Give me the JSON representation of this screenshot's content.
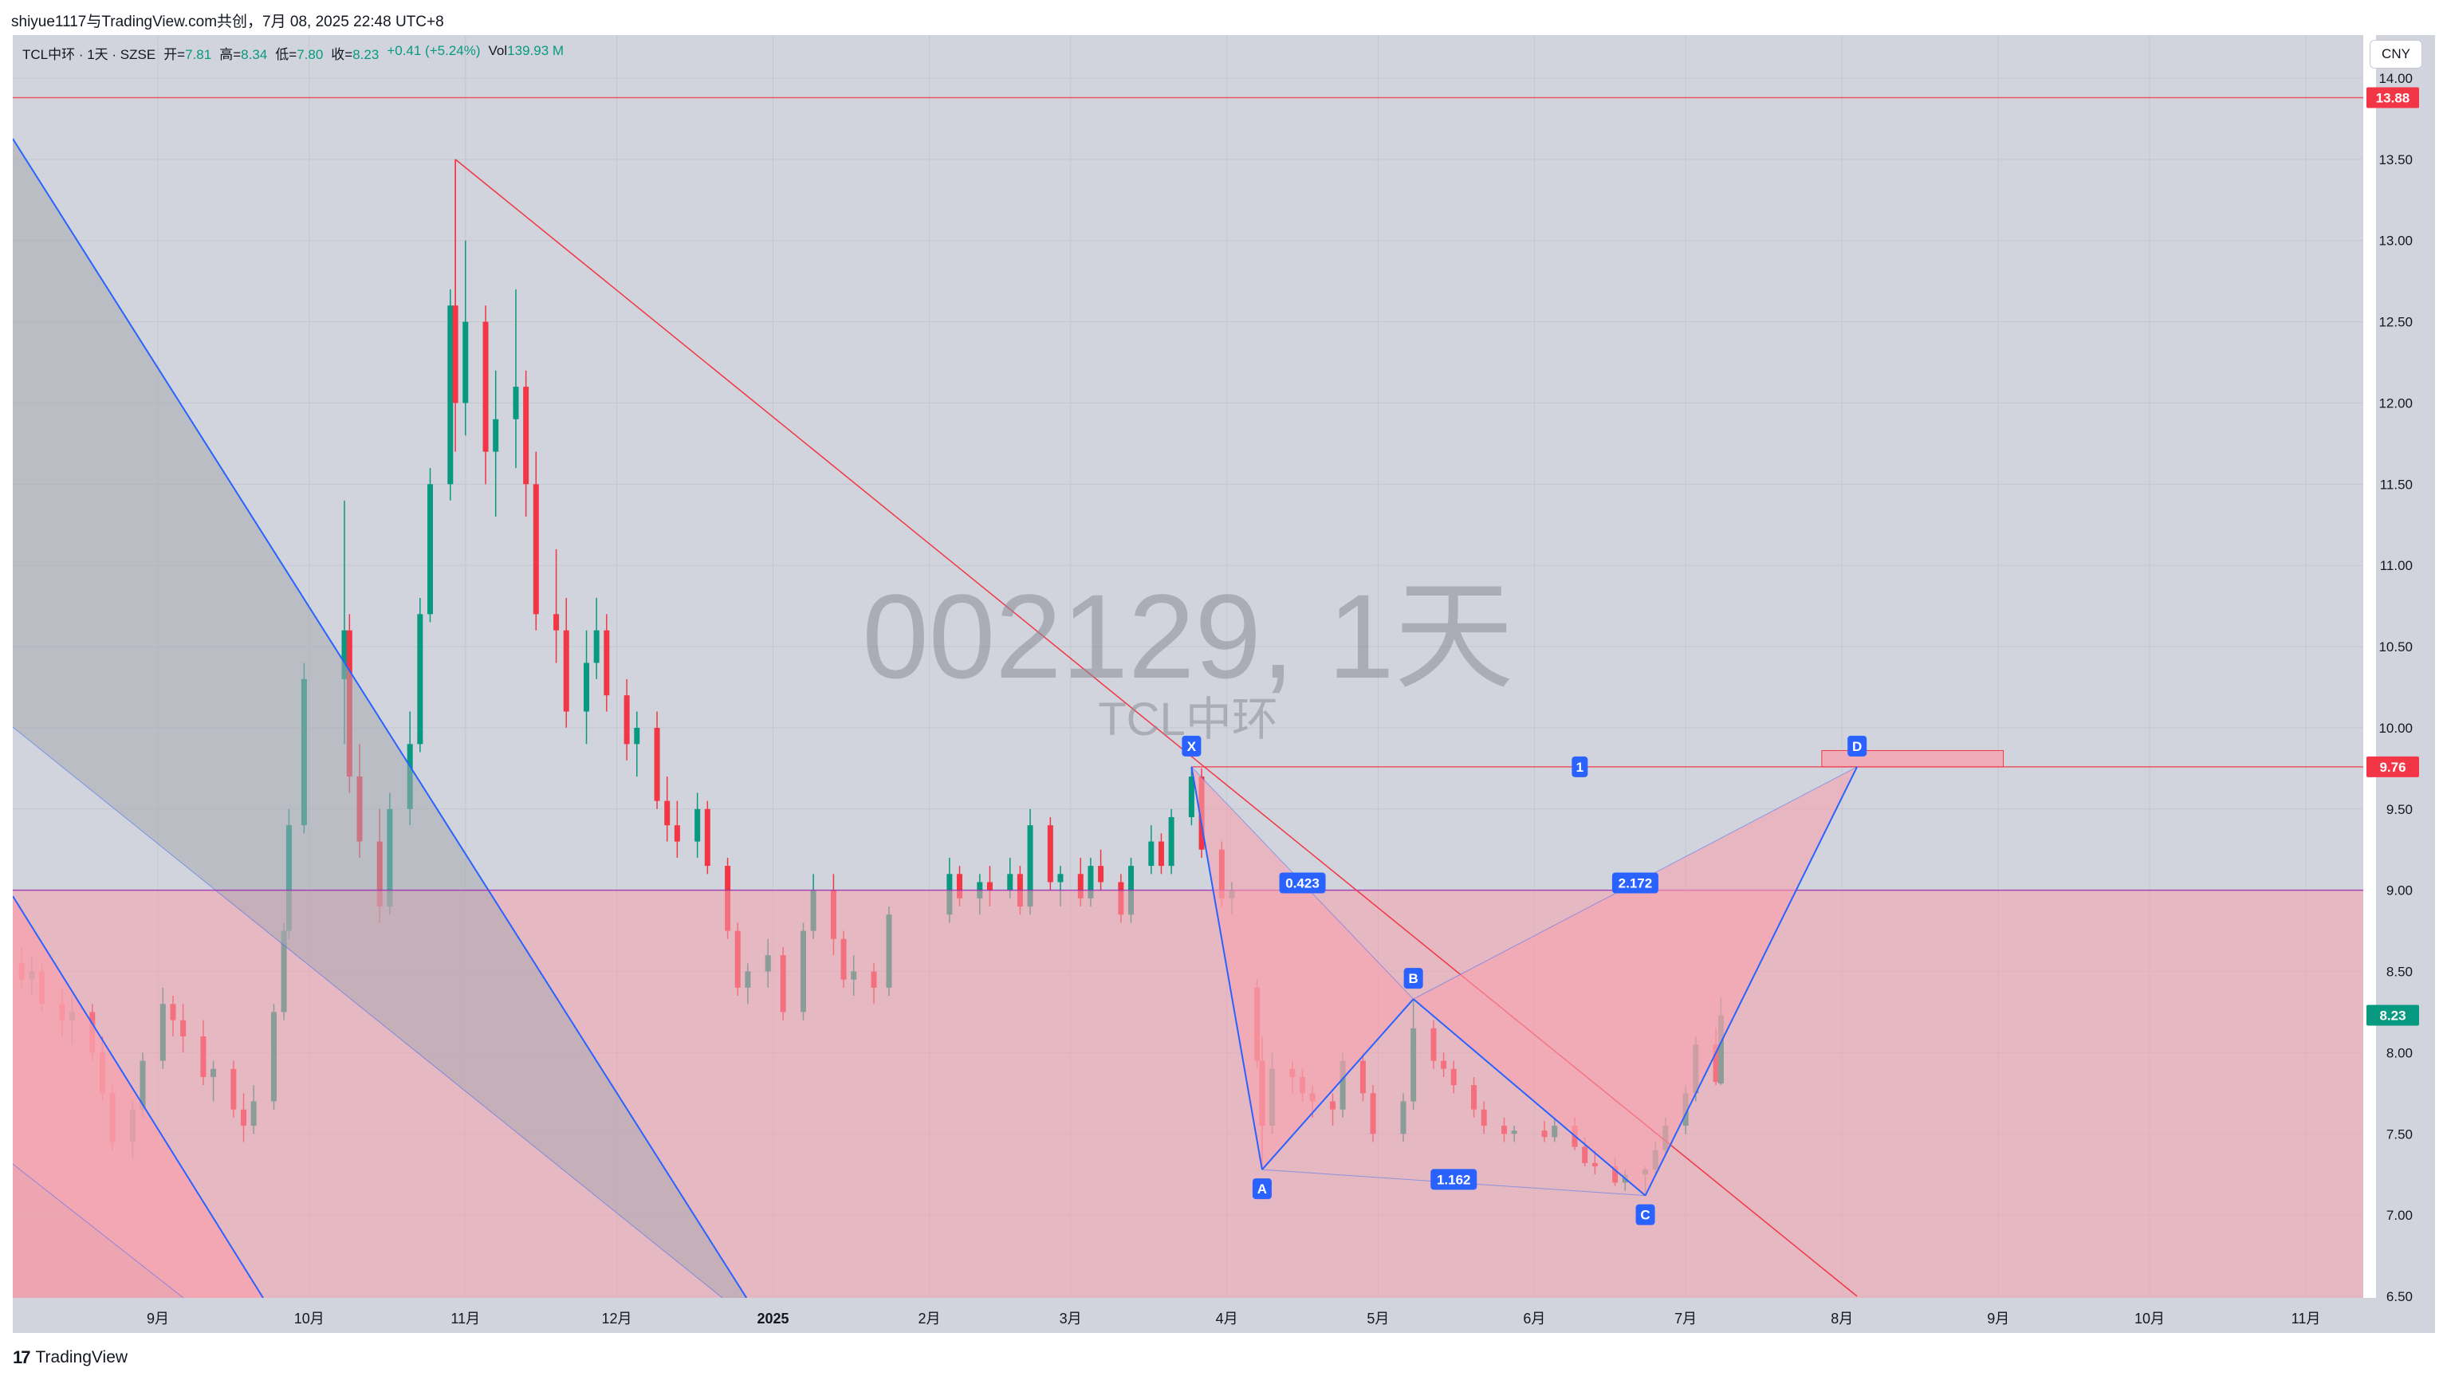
{
  "header": {
    "meta_text": "shiyue1117与TradingView.com共创，7月 08, 2025 22:48 UTC+8"
  },
  "legend": {
    "symbol_line": "TCL中环 · 1天 · SZSE",
    "open_label": "开=",
    "open": "7.81",
    "high_label": "高=",
    "high": "8.34",
    "low_label": "低=",
    "low": "7.80",
    "close_label": "收=",
    "close": "8.23",
    "change": "+0.41 (+5.24%)",
    "vol_label": "Vol",
    "vol": "139.93 M"
  },
  "currency_button": "CNY",
  "footer": {
    "logo_mark": "17",
    "logo_text": "TradingView"
  },
  "watermark": {
    "main": "002129, 1天",
    "sub": "TCL中环"
  },
  "colors": {
    "up": "#089981",
    "down": "#f23645",
    "blue_line": "#2962ff",
    "red_line": "#f23645",
    "pattern_fill": "#f7a1ad",
    "zone_fill": "#f7a1ad",
    "background": "#d1d4dc"
  },
  "chart_data": {
    "type": "candlestick",
    "symbol": "TCL中环",
    "exchange": "SZSE",
    "interval": "1天",
    "x_axis_labels": [
      "9月",
      "10月",
      "11月",
      "12月",
      "2025",
      "2月",
      "3月",
      "4月",
      "5月",
      "6月",
      "7月",
      "8月",
      "9月",
      "10月",
      "11月"
    ],
    "y_axis_ticks": [
      "14.00",
      "13.50",
      "13.00",
      "12.50",
      "12.00",
      "11.50",
      "11.00",
      "10.50",
      "10.00",
      "9.50",
      "9.00",
      "8.50",
      "8.00",
      "7.50",
      "7.00",
      "6.50"
    ],
    "ylim": [
      6.5,
      14.0
    ],
    "price_labels": [
      {
        "text": "13.88",
        "value": 13.88,
        "color": "#f23645"
      },
      {
        "text": "9.76",
        "value": 9.76,
        "color": "#f23645"
      },
      {
        "text": "8.23",
        "value": 8.23,
        "color": "#089981"
      }
    ],
    "horizontal_lines": [
      {
        "value": 13.88,
        "color": "#f23645"
      },
      {
        "value": 9.76,
        "color": "#f23645"
      },
      {
        "value": 9.0,
        "color": "#9c27b0"
      }
    ],
    "pattern_points": [
      {
        "label": "X",
        "date": "2025-03-25",
        "price": 9.76
      },
      {
        "label": "A",
        "date": "2025-04-08",
        "price": 7.28
      },
      {
        "label": "B",
        "date": "2025-05-08",
        "price": 8.33
      },
      {
        "label": "C",
        "date": "2025-06-23",
        "price": 7.12
      },
      {
        "label": "D",
        "date": "2025-08-04",
        "price": 9.76
      }
    ],
    "pattern_ratios": [
      "0.423",
      "1.162",
      "2.172"
    ],
    "point_label_1": "1",
    "series_ohlc_note": "daily candles 2024-08 to 2025-07-08",
    "candles": [
      [
        "2024-08-05",
        8.55,
        8.65,
        8.4,
        8.45
      ],
      [
        "2024-08-07",
        8.45,
        8.6,
        8.35,
        8.5
      ],
      [
        "2024-08-09",
        8.5,
        8.55,
        8.25,
        8.3
      ],
      [
        "2024-08-13",
        8.3,
        8.4,
        8.1,
        8.2
      ],
      [
        "2024-08-15",
        8.2,
        8.35,
        8.05,
        8.25
      ],
      [
        "2024-08-19",
        8.25,
        8.3,
        7.95,
        8.0
      ],
      [
        "2024-08-21",
        8.0,
        8.1,
        7.7,
        7.75
      ],
      [
        "2024-08-23",
        7.75,
        7.8,
        7.4,
        7.45
      ],
      [
        "2024-08-27",
        7.45,
        7.7,
        7.35,
        7.65
      ],
      [
        "2024-08-29",
        7.65,
        8.0,
        7.6,
        7.95
      ],
      [
        "2024-09-02",
        7.95,
        8.4,
        7.9,
        8.3
      ],
      [
        "2024-09-04",
        8.3,
        8.35,
        8.1,
        8.2
      ],
      [
        "2024-09-06",
        8.2,
        8.3,
        8.0,
        8.1
      ],
      [
        "2024-09-10",
        8.1,
        8.2,
        7.8,
        7.85
      ],
      [
        "2024-09-12",
        7.85,
        7.95,
        7.7,
        7.9
      ],
      [
        "2024-09-16",
        7.9,
        7.95,
        7.6,
        7.65
      ],
      [
        "2024-09-18",
        7.65,
        7.75,
        7.45,
        7.55
      ],
      [
        "2024-09-20",
        7.55,
        7.8,
        7.5,
        7.7
      ],
      [
        "2024-09-24",
        7.7,
        8.3,
        7.65,
        8.25
      ],
      [
        "2024-09-26",
        8.25,
        8.8,
        8.2,
        8.75
      ],
      [
        "2024-09-27",
        8.75,
        9.5,
        8.7,
        9.4
      ],
      [
        "2024-09-30",
        9.4,
        10.4,
        9.35,
        10.3
      ],
      [
        "2024-10-08",
        10.3,
        11.4,
        9.9,
        10.6
      ],
      [
        "2024-10-09",
        10.6,
        10.7,
        9.6,
        9.7
      ],
      [
        "2024-10-11",
        9.7,
        9.9,
        9.2,
        9.3
      ],
      [
        "2024-10-15",
        9.3,
        9.5,
        8.8,
        8.9
      ],
      [
        "2024-10-17",
        8.9,
        9.6,
        8.85,
        9.5
      ],
      [
        "2024-10-21",
        9.5,
        10.1,
        9.4,
        9.9
      ],
      [
        "2024-10-23",
        9.9,
        10.8,
        9.85,
        10.7
      ],
      [
        "2024-10-25",
        10.7,
        11.6,
        10.65,
        11.5
      ],
      [
        "2024-10-29",
        11.5,
        12.7,
        11.4,
        12.6
      ],
      [
        "2024-10-30",
        12.6,
        13.5,
        11.7,
        12.0
      ],
      [
        "2024-11-01",
        12.0,
        13.0,
        11.8,
        12.5
      ],
      [
        "2024-11-05",
        12.5,
        12.6,
        11.5,
        11.7
      ],
      [
        "2024-11-07",
        11.7,
        12.2,
        11.3,
        11.9
      ],
      [
        "2024-11-11",
        11.9,
        12.7,
        11.6,
        12.1
      ],
      [
        "2024-11-13",
        12.1,
        12.2,
        11.3,
        11.5
      ],
      [
        "2024-11-15",
        11.5,
        11.7,
        10.6,
        10.7
      ],
      [
        "2024-11-19",
        10.7,
        11.1,
        10.4,
        10.6
      ],
      [
        "2024-11-21",
        10.6,
        10.8,
        10.0,
        10.1
      ],
      [
        "2024-11-25",
        10.1,
        10.6,
        9.9,
        10.4
      ],
      [
        "2024-11-27",
        10.4,
        10.8,
        10.3,
        10.6
      ],
      [
        "2024-11-29",
        10.6,
        10.7,
        10.1,
        10.2
      ],
      [
        "2024-12-03",
        10.2,
        10.3,
        9.8,
        9.9
      ],
      [
        "2024-12-05",
        9.9,
        10.1,
        9.7,
        10.0
      ],
      [
        "2024-12-09",
        10.0,
        10.1,
        9.5,
        9.55
      ],
      [
        "2024-12-11",
        9.55,
        9.7,
        9.3,
        9.4
      ],
      [
        "2024-12-13",
        9.4,
        9.55,
        9.2,
        9.3
      ],
      [
        "2024-12-17",
        9.3,
        9.6,
        9.2,
        9.5
      ],
      [
        "2024-12-19",
        9.5,
        9.55,
        9.1,
        9.15
      ],
      [
        "2024-12-23",
        9.15,
        9.2,
        8.7,
        8.75
      ],
      [
        "2024-12-25",
        8.75,
        8.8,
        8.35,
        8.4
      ],
      [
        "2024-12-27",
        8.4,
        8.55,
        8.3,
        8.5
      ],
      [
        "2024-12-31",
        8.5,
        8.7,
        8.4,
        8.6
      ],
      [
        "2025-01-03",
        8.6,
        8.65,
        8.2,
        8.25
      ],
      [
        "2025-01-07",
        8.25,
        8.8,
        8.2,
        8.75
      ],
      [
        "2025-01-09",
        8.75,
        9.1,
        8.7,
        9.0
      ],
      [
        "2025-01-13",
        9.0,
        9.1,
        8.6,
        8.7
      ],
      [
        "2025-01-15",
        8.7,
        8.75,
        8.4,
        8.45
      ],
      [
        "2025-01-17",
        8.45,
        8.6,
        8.35,
        8.5
      ],
      [
        "2025-01-21",
        8.5,
        8.55,
        8.3,
        8.4
      ],
      [
        "2025-01-24",
        8.4,
        8.9,
        8.35,
        8.85
      ],
      [
        "2025-02-05",
        8.85,
        9.2,
        8.8,
        9.1
      ],
      [
        "2025-02-07",
        9.1,
        9.15,
        8.9,
        8.95
      ],
      [
        "2025-02-11",
        8.95,
        9.1,
        8.85,
        9.05
      ],
      [
        "2025-02-13",
        9.05,
        9.15,
        8.9,
        9.0
      ],
      [
        "2025-02-17",
        9.0,
        9.2,
        8.95,
        9.1
      ],
      [
        "2025-02-19",
        9.1,
        9.15,
        8.85,
        8.9
      ],
      [
        "2025-02-21",
        8.9,
        9.5,
        8.85,
        9.4
      ],
      [
        "2025-02-25",
        9.4,
        9.45,
        9.0,
        9.05
      ],
      [
        "2025-02-27",
        9.05,
        9.15,
        8.9,
        9.1
      ],
      [
        "2025-03-03",
        9.1,
        9.2,
        8.9,
        8.95
      ],
      [
        "2025-03-05",
        8.95,
        9.2,
        8.9,
        9.15
      ],
      [
        "2025-03-07",
        9.15,
        9.25,
        9.0,
        9.05
      ],
      [
        "2025-03-11",
        9.05,
        9.1,
        8.8,
        8.85
      ],
      [
        "2025-03-13",
        8.85,
        9.2,
        8.8,
        9.15
      ],
      [
        "2025-03-17",
        9.15,
        9.4,
        9.1,
        9.3
      ],
      [
        "2025-03-19",
        9.3,
        9.35,
        9.1,
        9.15
      ],
      [
        "2025-03-21",
        9.15,
        9.5,
        9.1,
        9.45
      ],
      [
        "2025-03-25",
        9.45,
        9.76,
        9.4,
        9.7
      ],
      [
        "2025-03-27",
        9.7,
        9.75,
        9.2,
        9.25
      ],
      [
        "2025-03-31",
        9.25,
        9.3,
        8.9,
        8.95
      ],
      [
        "2025-04-02",
        8.95,
        9.05,
        8.85,
        9.0
      ],
      [
        "2025-04-07",
        8.4,
        8.45,
        7.9,
        7.95
      ],
      [
        "2025-04-08",
        7.95,
        8.1,
        7.28,
        7.55
      ],
      [
        "2025-04-10",
        7.55,
        8.0,
        7.5,
        7.9
      ],
      [
        "2025-04-14",
        7.9,
        7.95,
        7.75,
        7.85
      ],
      [
        "2025-04-16",
        7.85,
        7.9,
        7.7,
        7.75
      ],
      [
        "2025-04-18",
        7.75,
        7.8,
        7.6,
        7.7
      ],
      [
        "2025-04-22",
        7.7,
        7.75,
        7.55,
        7.65
      ],
      [
        "2025-04-24",
        7.65,
        8.0,
        7.6,
        7.95
      ],
      [
        "2025-04-28",
        7.95,
        8.0,
        7.7,
        7.75
      ],
      [
        "2025-04-30",
        7.75,
        7.8,
        7.45,
        7.5
      ],
      [
        "2025-05-06",
        7.5,
        7.75,
        7.45,
        7.7
      ],
      [
        "2025-05-08",
        7.7,
        8.33,
        7.65,
        8.15
      ],
      [
        "2025-05-12",
        8.15,
        8.2,
        7.9,
        7.95
      ],
      [
        "2025-05-14",
        7.95,
        8.0,
        7.85,
        7.9
      ],
      [
        "2025-05-16",
        7.9,
        7.95,
        7.75,
        7.8
      ],
      [
        "2025-05-20",
        7.8,
        7.85,
        7.6,
        7.65
      ],
      [
        "2025-05-22",
        7.65,
        7.7,
        7.5,
        7.55
      ],
      [
        "2025-05-26",
        7.55,
        7.6,
        7.45,
        7.5
      ],
      [
        "2025-05-28",
        7.5,
        7.55,
        7.45,
        7.52
      ],
      [
        "2025-06-03",
        7.52,
        7.58,
        7.45,
        7.48
      ],
      [
        "2025-06-05",
        7.48,
        7.6,
        7.45,
        7.55
      ],
      [
        "2025-06-09",
        7.55,
        7.6,
        7.4,
        7.42
      ],
      [
        "2025-06-11",
        7.42,
        7.48,
        7.3,
        7.32
      ],
      [
        "2025-06-13",
        7.32,
        7.4,
        7.25,
        7.3
      ],
      [
        "2025-06-17",
        7.3,
        7.35,
        7.18,
        7.2
      ],
      [
        "2025-06-19",
        7.2,
        7.28,
        7.15,
        7.25
      ],
      [
        "2025-06-23",
        7.25,
        7.3,
        7.12,
        7.28
      ],
      [
        "2025-06-25",
        7.28,
        7.45,
        7.25,
        7.4
      ],
      [
        "2025-06-27",
        7.4,
        7.6,
        7.38,
        7.55
      ],
      [
        "2025-07-01",
        7.55,
        7.8,
        7.5,
        7.75
      ],
      [
        "2025-07-03",
        7.75,
        8.1,
        7.7,
        8.05
      ],
      [
        "2025-07-07",
        8.05,
        8.15,
        7.8,
        7.82
      ],
      [
        "2025-07-08",
        7.81,
        8.34,
        7.8,
        8.23
      ]
    ]
  }
}
